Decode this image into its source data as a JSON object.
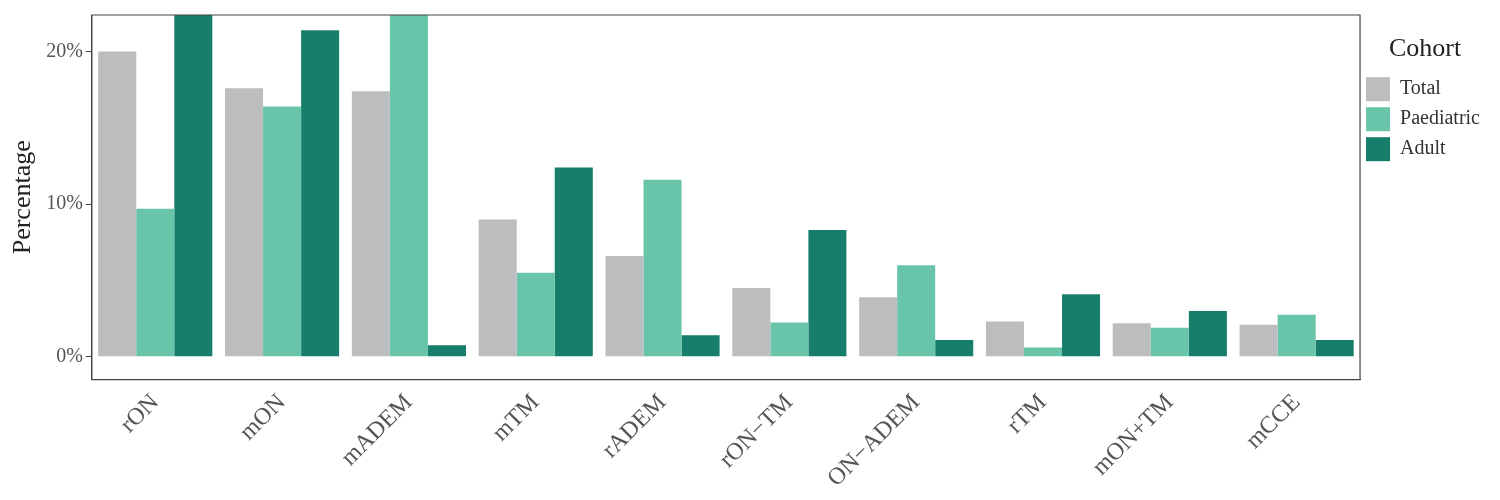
{
  "chart_data": {
    "type": "bar",
    "ylabel": "Percentage",
    "legend_title": "Cohort",
    "legend": "right",
    "grid": false,
    "categories": [
      "rON",
      "mON",
      "mADEM",
      "mTM",
      "rADEM",
      "rON−TM",
      "ON−ADEM",
      "rTM",
      "mON+TM",
      "mCCE"
    ],
    "ylim": [
      -1.5,
      22.4
    ],
    "yticks": [
      {
        "value": 0,
        "label": "0%"
      },
      {
        "value": 10,
        "label": "10%"
      },
      {
        "value": 20,
        "label": "20%"
      }
    ],
    "series": [
      {
        "name": "Total",
        "color": "#bcbdbf",
        "values": [
          20.0,
          17.6,
          17.4,
          9.0,
          6.6,
          4.5,
          3.9,
          2.3,
          2.2,
          2.1
        ]
      },
      {
        "name": "Paediatric",
        "color": "#69c5a9",
        "values": [
          9.7,
          16.4,
          22.4,
          5.5,
          11.6,
          2.25,
          6.0,
          0.6,
          1.9,
          2.75
        ]
      },
      {
        "name": "Adult",
        "color": "#177e6b",
        "values": [
          22.4,
          21.4,
          0.75,
          12.4,
          1.4,
          8.3,
          1.1,
          4.1,
          3.0,
          1.1
        ]
      }
    ]
  }
}
